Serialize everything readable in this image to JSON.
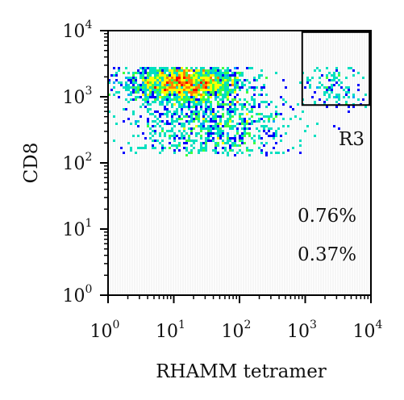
{
  "chart_data": {
    "type": "scatter",
    "subtype": "flow-cytometry density dot plot",
    "xlabel": "RHAMM tetramer",
    "ylabel": "CD8",
    "x_scale": "log",
    "y_scale": "log",
    "xlim": [
      1,
      10000
    ],
    "ylim": [
      1,
      10000
    ],
    "x_ticks": [
      {
        "base": "10",
        "exp": "0",
        "value": 1
      },
      {
        "base": "10",
        "exp": "1",
        "value": 10
      },
      {
        "base": "10",
        "exp": "2",
        "value": 100
      },
      {
        "base": "10",
        "exp": "3",
        "value": 1000
      },
      {
        "base": "10",
        "exp": "4",
        "value": 10000
      }
    ],
    "y_ticks": [
      {
        "base": "10",
        "exp": "0",
        "value": 1
      },
      {
        "base": "10",
        "exp": "1",
        "value": 10
      },
      {
        "base": "10",
        "exp": "2",
        "value": 100
      },
      {
        "base": "10",
        "exp": "3",
        "value": 1000
      },
      {
        "base": "10",
        "exp": "4",
        "value": 10000
      }
    ],
    "gate": {
      "label": "R3",
      "x_range": [
        900,
        9500
      ],
      "y_range": [
        750,
        9500
      ]
    },
    "annotations": [
      "0.76%",
      "0.37%"
    ],
    "density_colors": [
      "#0000ff",
      "#00a8ff",
      "#00e0c0",
      "#40ff40",
      "#ffff00",
      "#ff8000",
      "#ff0000"
    ],
    "populations": [
      {
        "x_center": 15,
        "y_center": 1600,
        "x_log_sd": 0.42,
        "y_log_sd": 0.14,
        "weight": 0.62
      },
      {
        "x_center": 40,
        "y_center": 350,
        "x_log_sd": 0.55,
        "y_log_sd": 0.3,
        "weight": 0.3
      },
      {
        "x_center": 3000,
        "y_center": 1500,
        "x_log_sd": 0.25,
        "y_log_sd": 0.25,
        "weight": 0.04
      }
    ]
  }
}
